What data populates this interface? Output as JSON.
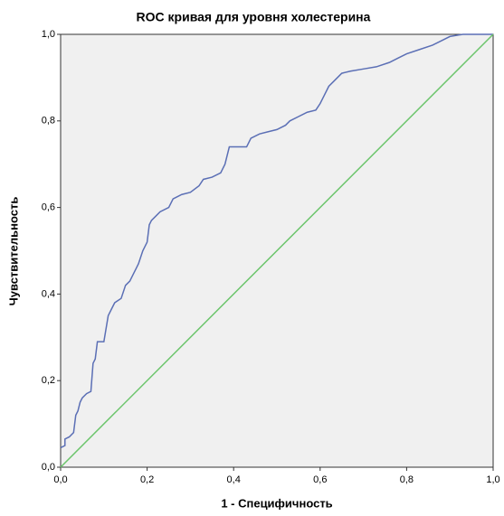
{
  "chart_data": {
    "type": "line",
    "title": "ROC кривая для уровня холестерина",
    "xlabel": "1 - Специфичность",
    "ylabel": "Чувствительность",
    "series": [
      {
        "color": "#5b6fb5",
        "x": [
          0,
          0.01,
          0.01,
          0.02,
          0.03,
          0.035,
          0.04,
          0.045,
          0.05,
          0.06,
          0.07,
          0.075,
          0.08,
          0.085,
          0.1,
          0.11,
          0.12,
          0.125,
          0.14,
          0.15,
          0.16,
          0.17,
          0.175,
          0.18,
          0.19,
          0.2,
          0.205,
          0.21,
          0.22,
          0.23,
          0.25,
          0.26,
          0.28,
          0.3,
          0.32,
          0.33,
          0.35,
          0.37,
          0.38,
          0.39,
          0.43,
          0.44,
          0.46,
          0.48,
          0.5,
          0.52,
          0.53,
          0.55,
          0.57,
          0.59,
          0.6,
          0.61,
          0.62,
          0.63,
          0.65,
          0.67,
          0.7,
          0.73,
          0.76,
          0.78,
          0.8,
          0.83,
          0.86,
          0.88,
          0.9,
          0.93,
          1
        ],
        "values": [
          0.045,
          0.05,
          0.065,
          0.07,
          0.08,
          0.12,
          0.13,
          0.15,
          0.16,
          0.17,
          0.175,
          0.24,
          0.25,
          0.29,
          0.29,
          0.35,
          0.37,
          0.38,
          0.39,
          0.42,
          0.43,
          0.45,
          0.46,
          0.47,
          0.5,
          0.52,
          0.56,
          0.57,
          0.58,
          0.59,
          0.6,
          0.62,
          0.63,
          0.635,
          0.65,
          0.665,
          0.67,
          0.68,
          0.7,
          0.74,
          0.74,
          0.76,
          0.77,
          0.775,
          0.78,
          0.79,
          0.8,
          0.81,
          0.82,
          0.825,
          0.84,
          0.86,
          0.88,
          0.89,
          0.91,
          0.915,
          0.92,
          0.925,
          0.935,
          0.945,
          0.955,
          0.965,
          0.975,
          0.985,
          0.995,
          1,
          1
        ]
      },
      {
        "color": "#6cc56c",
        "x": [
          0,
          1
        ],
        "values": [
          0,
          1
        ]
      }
    ],
    "xlim": [
      0,
      1
    ],
    "ylim": [
      0,
      1
    ],
    "xticks": [
      {
        "value": 0,
        "label": "0,0"
      },
      {
        "value": 0.2,
        "label": "0,2"
      },
      {
        "value": 0.4,
        "label": "0,4"
      },
      {
        "value": 0.6,
        "label": "0,6"
      },
      {
        "value": 0.8,
        "label": "0,8"
      },
      {
        "value": 1,
        "label": "1,0"
      }
    ],
    "yticks": [
      {
        "value": 0,
        "label": "0,0"
      },
      {
        "value": 0.2,
        "label": "0,2"
      },
      {
        "value": 0.4,
        "label": "0,4"
      },
      {
        "value": 0.6,
        "label": "0,6"
      },
      {
        "value": 0.8,
        "label": "0,8"
      },
      {
        "value": 1,
        "label": "1,0"
      }
    ]
  }
}
